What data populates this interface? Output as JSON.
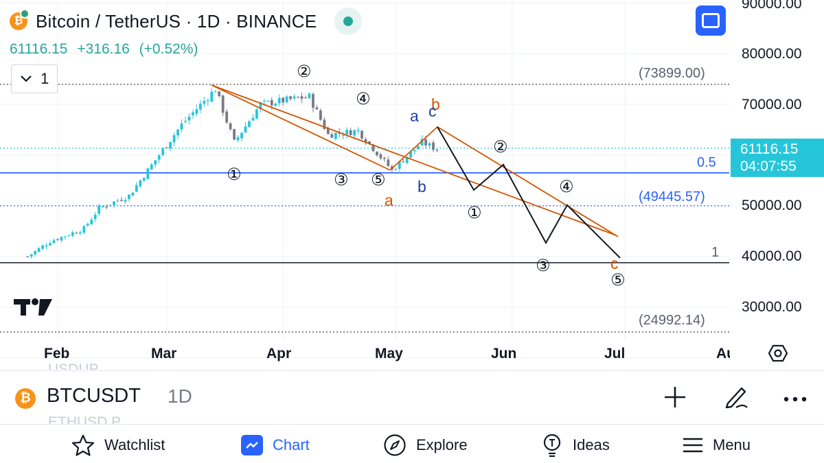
{
  "header": {
    "symbol_title": "Bitcoin / TetherUS · 1D · BINANCE",
    "last_price": "61116.15",
    "change": "+316.16",
    "change_pct": "(+0.52%)",
    "interval_value": "1"
  },
  "price_axis": {
    "labels": [
      "90000.00",
      "80000.00",
      "70000.00",
      "50000.00",
      "40000.00",
      "30000.00"
    ],
    "current_price": "61116.15",
    "countdown": "04:07:55"
  },
  "time_axis": {
    "labels": [
      "Feb",
      "Mar",
      "Apr",
      "May",
      "Jun",
      "Jul",
      "Au"
    ]
  },
  "drawings": {
    "level_high": "(73899.00)",
    "level_mid": "(49445.57)",
    "level_low": "(24992.14)",
    "fib_05": "0.5",
    "fib_1": "1",
    "wave_labels": {
      "w1": "①",
      "w2": "②",
      "w3": "③",
      "w4": "④",
      "w5": "⑤",
      "proj1": "①",
      "proj2": "②",
      "proj3": "③",
      "proj4": "④",
      "proj5": "⑤",
      "a_orange": "a",
      "b_orange": "b",
      "c_orange": "c",
      "a_blue": "a",
      "b_blue": "b",
      "c_blue": "c"
    }
  },
  "colors": {
    "up": "#26c6da",
    "down": "#787b86",
    "accent": "#2962ff",
    "wave_orange": "#d35400",
    "wave_blue": "#1e3fa0",
    "price_tag": "#26c6da",
    "live": "#26a69a"
  },
  "chart_data": {
    "type": "candlestick",
    "symbol": "BTCUSDT",
    "interval": "1D",
    "ylim": [
      20000,
      92000
    ],
    "close_path_approx": [
      [
        "Jan 24",
        40000
      ],
      [
        "Jan 30",
        43000
      ],
      [
        "Feb 8",
        45500
      ],
      [
        "Feb 12",
        49500
      ],
      [
        "Feb 20",
        52000
      ],
      [
        "Feb 28",
        60000
      ],
      [
        "Mar 5",
        66000
      ],
      [
        "Mar 14",
        73000
      ],
      [
        "Mar 19",
        62500
      ],
      [
        "Mar 26",
        70000
      ],
      [
        "Apr 8",
        71500
      ],
      [
        "Apr 13",
        64000
      ],
      [
        "Apr 21",
        64800
      ],
      [
        "Apr 30",
        57000
      ],
      [
        "May 8",
        62500
      ],
      [
        "May 12",
        61116
      ]
    ]
  },
  "symbol_bar": {
    "symbol": "BTCUSDT",
    "interval": "1D",
    "ghost_prev": "USDUP",
    "ghost_next": "ETHUSD.P"
  },
  "nav": {
    "watchlist": "Watchlist",
    "chart": "Chart",
    "explore": "Explore",
    "ideas": "Ideas",
    "menu": "Menu"
  }
}
